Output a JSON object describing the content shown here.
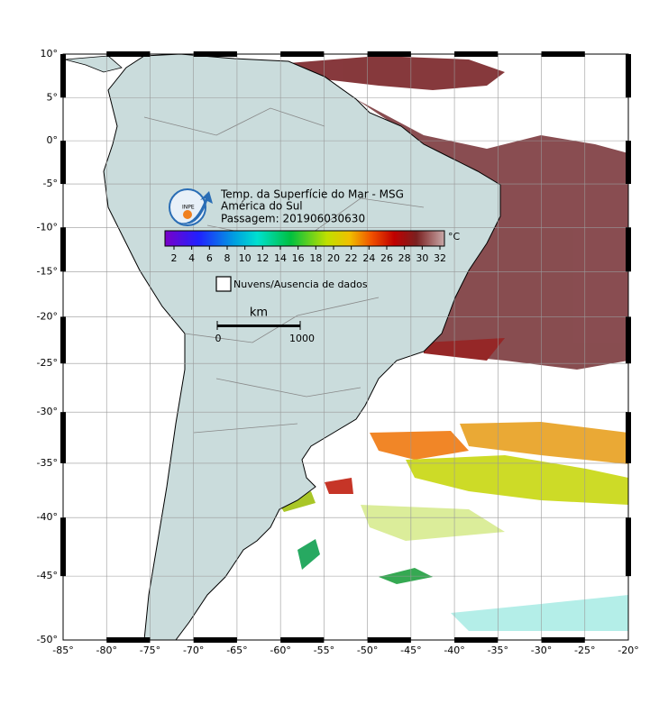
{
  "logo": {
    "text": "INPE"
  },
  "title": {
    "lines": [
      "Temp. da Superfície do Mar - MSG",
      "América do Sul",
      "Passagem: 201906030630"
    ]
  },
  "colorbar": {
    "ticks": [
      2,
      4,
      6,
      8,
      10,
      12,
      14,
      16,
      18,
      20,
      22,
      24,
      26,
      28,
      30,
      32
    ],
    "unit": "°C"
  },
  "legend": {
    "label": "Nuvens/Ausencia de dados"
  },
  "scale_bar": {
    "unit": "km",
    "ticks": [
      0,
      1000
    ]
  },
  "map": {
    "lat_ticks": [
      {
        "value": 10,
        "label": "10°"
      },
      {
        "value": 5,
        "label": "5°"
      },
      {
        "value": 0,
        "label": "0°"
      },
      {
        "value": -5,
        "label": "-5°"
      },
      {
        "value": -10,
        "label": "-10°"
      },
      {
        "value": -15,
        "label": "-15°"
      },
      {
        "value": -20,
        "label": "-20°"
      },
      {
        "value": -25,
        "label": "-25°"
      },
      {
        "value": -30,
        "label": "-30°"
      },
      {
        "value": -35,
        "label": "-35°"
      },
      {
        "value": -40,
        "label": "-40°"
      },
      {
        "value": -45,
        "label": "-45°"
      },
      {
        "value": -50,
        "label": "-50°"
      }
    ],
    "lon_ticks": [
      {
        "value": -85,
        "label": "-85°"
      },
      {
        "value": -80,
        "label": "-80°"
      },
      {
        "value": -75,
        "label": "-75°"
      },
      {
        "value": -70,
        "label": "-70°"
      },
      {
        "value": -65,
        "label": "-65°"
      },
      {
        "value": -60,
        "label": "-60°"
      },
      {
        "value": -55,
        "label": "-55°"
      },
      {
        "value": -50,
        "label": "-50°"
      },
      {
        "value": -45,
        "label": "-45°"
      },
      {
        "value": -40,
        "label": "-40°"
      },
      {
        "value": -35,
        "label": "-35°"
      },
      {
        "value": -30,
        "label": "-30°"
      },
      {
        "value": -25,
        "label": "-25°"
      },
      {
        "value": -20,
        "label": "-20°"
      }
    ]
  }
}
